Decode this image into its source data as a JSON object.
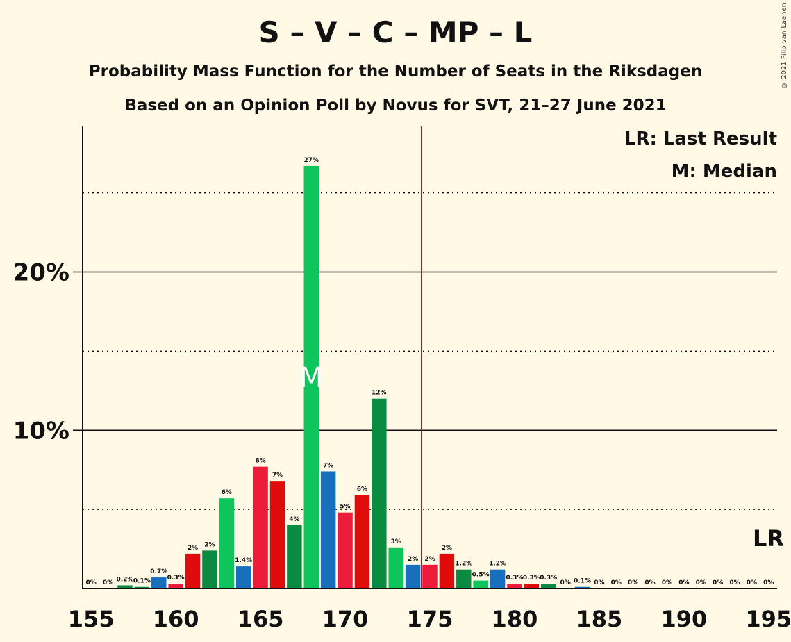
{
  "title": "S – V – C – MP – L",
  "subtitle1": "Probability Mass Function for the Number of Seats in the Riksdagen",
  "subtitle2": "Based on an Opinion Poll by Novus for SVT, 21–27 June 2021",
  "copyright": "© 2021 Filip van Laenen",
  "legend": {
    "lr": "LR: Last Result",
    "m": "M: Median"
  },
  "lr_mark": "LR",
  "median_mark": "M",
  "colors": {
    "green": "#10c45c",
    "blue": "#1a6fbd",
    "red": "#ec1c3a",
    "dark_red": "#e00b0b",
    "dark_green": "#0b8a41",
    "lr_line": "#cc0000"
  },
  "chart_data": {
    "type": "bar",
    "x": [
      155,
      156,
      157,
      158,
      159,
      160,
      161,
      162,
      163,
      164,
      165,
      166,
      167,
      168,
      169,
      170,
      171,
      172,
      173,
      174,
      175,
      176,
      177,
      178,
      179,
      180,
      181,
      182,
      183,
      184,
      185,
      186,
      187,
      188,
      189,
      190,
      191,
      192,
      193,
      194,
      195
    ],
    "values": [
      0,
      0,
      0.2,
      0.1,
      0.7,
      0.3,
      2.2,
      2.4,
      5.7,
      1.4,
      7.7,
      6.8,
      4.0,
      26.7,
      7.4,
      4.8,
      5.9,
      12.0,
      2.6,
      1.5,
      1.5,
      2.2,
      1.2,
      0.5,
      1.2,
      0.3,
      0.3,
      0.3,
      0,
      0.1,
      0,
      0,
      0,
      0,
      0,
      0,
      0,
      0,
      0,
      0,
      0
    ],
    "labels": [
      "0%",
      "0%",
      "0.2%",
      "0.1%",
      "0.7%",
      "0.3%",
      "2%",
      "2%",
      "6%",
      "1.4%",
      "8%",
      "7%",
      "4%",
      "27%",
      "7%",
      "5%",
      "6%",
      "12%",
      "3%",
      "2%",
      "2%",
      "2%",
      "1.2%",
      "0.5%",
      "1.2%",
      "0.3%",
      "0.3%",
      "0.3%",
      "0%",
      "0.1%",
      "0%",
      "0%",
      "0%",
      "0%",
      "0%",
      "0%",
      "0%",
      "0%",
      "0%",
      "0%",
      "0%"
    ],
    "bar_colors": [
      "green",
      "blue",
      "dark_green",
      "dark_green",
      "blue",
      "red",
      "dark_red",
      "dark_green",
      "green",
      "blue",
      "red",
      "dark_red",
      "dark_green",
      "green",
      "blue",
      "red",
      "dark_red",
      "dark_green",
      "green",
      "blue",
      "red",
      "dark_red",
      "dark_green",
      "green",
      "blue",
      "red",
      "dark_red",
      "dark_green",
      "green",
      "blue",
      "red",
      "dark_red",
      "dark_green",
      "green",
      "blue",
      "red",
      "dark_red",
      "dark_green",
      "green",
      "blue",
      "red"
    ],
    "x_ticks": [
      155,
      160,
      165,
      170,
      175,
      180,
      185,
      190,
      195
    ],
    "x_tick_labels": [
      "155",
      "160",
      "165",
      "170",
      "175",
      "180",
      "185",
      "190",
      "195"
    ],
    "y_ticks": [
      10,
      20
    ],
    "y_tick_labels": [
      "10%",
      "20%"
    ],
    "minor_gridlines": [
      5,
      15,
      25
    ],
    "xlim": [
      154.5,
      195.5
    ],
    "ylim": [
      0,
      29.2
    ],
    "last_result": 174.5,
    "median": 168
  }
}
